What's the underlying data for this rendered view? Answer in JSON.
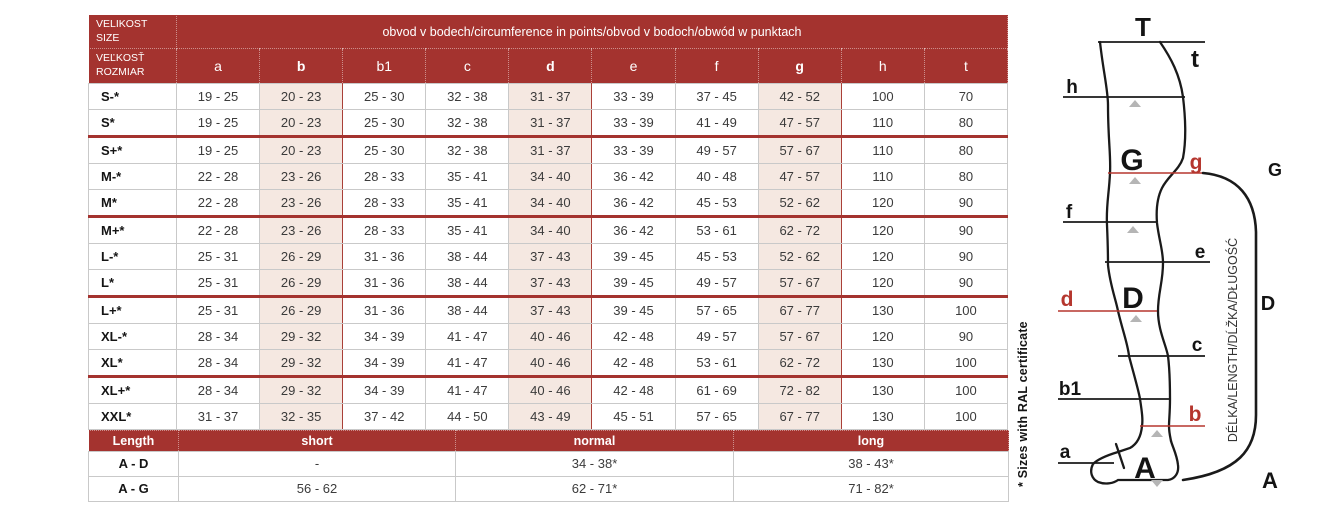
{
  "main_table": {
    "corner_top": "VELIKOST\nSIZE",
    "corner_bottom": "VEĽKOSŤ\nROZMIAR",
    "span_title": "obvod v bodech/circumference in points/obvod v bodoch/obwód w punktach",
    "columns": [
      "a",
      "b",
      "b1",
      "c",
      "d",
      "e",
      "f",
      "g",
      "h",
      "t"
    ],
    "highlight_columns": [
      "b",
      "d",
      "g"
    ],
    "rows": [
      {
        "size": "S-*",
        "sep": false,
        "values": [
          "19 - 25",
          "20 - 23",
          "25 - 30",
          "32 - 38",
          "31 - 37",
          "33 - 39",
          "37 - 45",
          "42 - 52",
          "100",
          "70"
        ]
      },
      {
        "size": "S*",
        "sep": false,
        "values": [
          "19 - 25",
          "20 - 23",
          "25 - 30",
          "32 - 38",
          "31 - 37",
          "33 - 39",
          "41 - 49",
          "47 - 57",
          "110",
          "80"
        ]
      },
      {
        "size": "S+*",
        "sep": true,
        "values": [
          "19 - 25",
          "20 - 23",
          "25 - 30",
          "32 - 38",
          "31 - 37",
          "33 - 39",
          "49 - 57",
          "57 - 67",
          "110",
          "80"
        ]
      },
      {
        "size": "M-*",
        "sep": false,
        "values": [
          "22 - 28",
          "23 - 26",
          "28 - 33",
          "35 - 41",
          "34 - 40",
          "36 - 42",
          "40 - 48",
          "47 - 57",
          "110",
          "80"
        ]
      },
      {
        "size": "M*",
        "sep": false,
        "values": [
          "22 - 28",
          "23 - 26",
          "28 - 33",
          "35 - 41",
          "34 - 40",
          "36 - 42",
          "45 - 53",
          "52 - 62",
          "120",
          "90"
        ]
      },
      {
        "size": "M+*",
        "sep": true,
        "values": [
          "22 - 28",
          "23 - 26",
          "28 - 33",
          "35 - 41",
          "34 - 40",
          "36 - 42",
          "53 - 61",
          "62 - 72",
          "120",
          "90"
        ]
      },
      {
        "size": "L-*",
        "sep": false,
        "values": [
          "25 - 31",
          "26 - 29",
          "31 - 36",
          "38 - 44",
          "37 - 43",
          "39 - 45",
          "45 - 53",
          "52 - 62",
          "120",
          "90"
        ]
      },
      {
        "size": "L*",
        "sep": false,
        "values": [
          "25 - 31",
          "26 - 29",
          "31 - 36",
          "38 - 44",
          "37 - 43",
          "39 - 45",
          "49 - 57",
          "57 - 67",
          "120",
          "90"
        ]
      },
      {
        "size": "L+*",
        "sep": true,
        "values": [
          "25 - 31",
          "26 - 29",
          "31 - 36",
          "38 - 44",
          "37 - 43",
          "39 - 45",
          "57 - 65",
          "67 - 77",
          "130",
          "100"
        ]
      },
      {
        "size": "XL-*",
        "sep": false,
        "values": [
          "28 - 34",
          "29 - 32",
          "34 - 39",
          "41 - 47",
          "40 - 46",
          "42 - 48",
          "49 - 57",
          "57 - 67",
          "120",
          "90"
        ]
      },
      {
        "size": "XL*",
        "sep": false,
        "values": [
          "28 - 34",
          "29 - 32",
          "34 - 39",
          "41 - 47",
          "40 - 46",
          "42 - 48",
          "53 - 61",
          "62 - 72",
          "130",
          "100"
        ]
      },
      {
        "size": "XL+*",
        "sep": true,
        "values": [
          "28 - 34",
          "29 - 32",
          "34 - 39",
          "41 - 47",
          "40 - 46",
          "42 - 48",
          "61 - 69",
          "72 - 82",
          "130",
          "100"
        ]
      },
      {
        "size": "XXL*",
        "sep": false,
        "values": [
          "31 - 37",
          "32 - 35",
          "37 - 42",
          "44 - 50",
          "43 - 49",
          "45 - 51",
          "57 - 65",
          "67 - 77",
          "130",
          "100"
        ]
      }
    ]
  },
  "length_table": {
    "header": [
      "Length",
      "short",
      "normal",
      "long"
    ],
    "rows": [
      [
        "A - D",
        "-",
        "34 - 38*",
        "38 - 43*"
      ],
      [
        "A - G",
        "56 - 62",
        "62 - 71*",
        "71 - 82*"
      ]
    ]
  },
  "side_note": "* Sizes with RAL certificate",
  "diagram": {
    "ruler_label": "DÉLKA/LENGTH/DĹŽKA/DŁUGOŚĆ",
    "point_labels": {
      "T": "T",
      "t": "t",
      "h": "h",
      "G_inner": "G",
      "g": "g",
      "G_outer": "G",
      "f": "f",
      "e": "e",
      "d": "d",
      "D_inner": "D",
      "D_outer": "D",
      "c": "c",
      "b1": "b1",
      "b": "b",
      "a": "a",
      "A_inner": "A",
      "A_outer": "A"
    }
  },
  "colors": {
    "header_red": "#A4332F",
    "highlight_pink": "#F5E8E1",
    "diagram_red": "#B5362E",
    "triangle_gray": "#B5B5B5"
  }
}
